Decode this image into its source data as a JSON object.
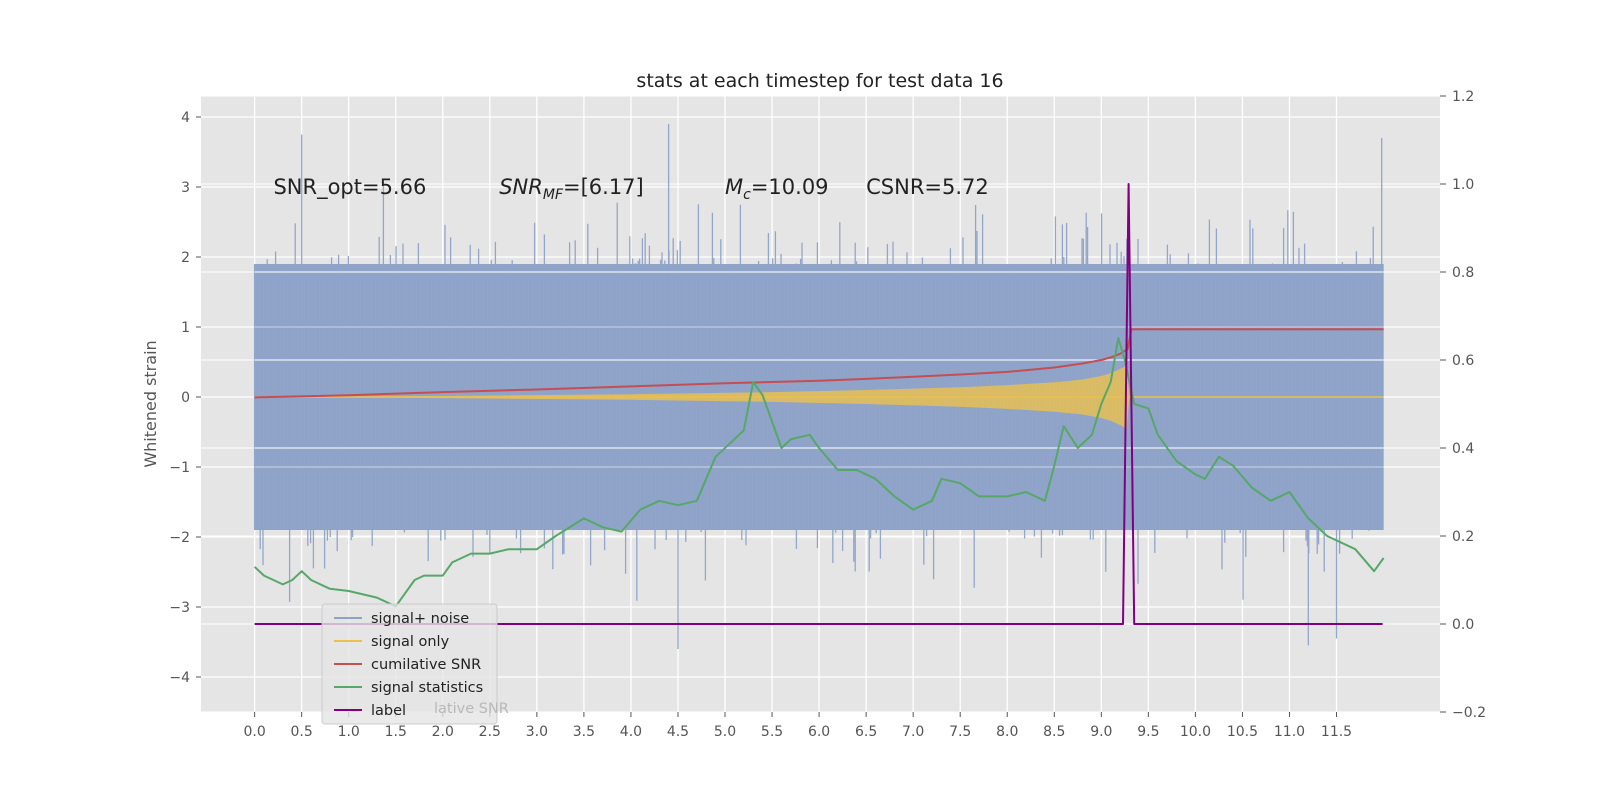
{
  "chart_data": {
    "type": "line",
    "title": "stats at each timestep for test data 16",
    "ylabel": "Whitened strain",
    "xlim": [
      -0.57,
      12.6
    ],
    "ylim": [
      -4.5,
      4.3
    ],
    "ylim_right": [
      -0.2,
      1.2
    ],
    "xticks": [
      "0.0",
      "0.5",
      "1.0",
      "1.5",
      "2.0",
      "2.5",
      "3.0",
      "3.5",
      "4.0",
      "4.5",
      "5.0",
      "5.5",
      "6.0",
      "6.5",
      "7.0",
      "7.5",
      "8.0",
      "8.5",
      "9.0",
      "9.5",
      "10.0",
      "10.5",
      "11.0",
      "11.5"
    ],
    "yticks": [
      "4",
      "3",
      "2",
      "1",
      "0",
      "−1",
      "−2",
      "−3",
      "−4"
    ],
    "yticks_right": [
      "1.2",
      "1.0",
      "0.8",
      "0.6",
      "0.4",
      "0.2",
      "0.0",
      "−0.2"
    ],
    "grid": true,
    "legend_placement": "lower-left",
    "annotations": [
      {
        "text": "SNR_opt=5.66",
        "x": 0.2,
        "y": 3.0
      },
      {
        "sub_main": "SNR",
        "sub_index": "MF",
        "text_after": "=[6.17]",
        "x": 2.6,
        "y": 3.0
      },
      {
        "sub_main": "M",
        "sub_index": "c",
        "text_after": "=10.09",
        "x": 5.0,
        "y": 3.0
      },
      {
        "text": "CSNR=5.72",
        "x": 6.5,
        "y": 3.0
      }
    ],
    "legend": [
      {
        "label": "signal+ noise",
        "color": "#8ea2c8"
      },
      {
        "label": "signal only",
        "color": "#ecc04c"
      },
      {
        "label": "cumilative SNR",
        "color": "#c44e52"
      },
      {
        "label": "signal statistics",
        "color": "#55a868"
      },
      {
        "label": "label",
        "color": "#800080"
      }
    ],
    "legend_ghost_text": "lative SNR",
    "series": [
      {
        "name": "signal+ noise",
        "axis": "left",
        "color": "#8ea2c8",
        "x_range": [
          0,
          12.0
        ],
        "band_upper": 1.9,
        "band_lower": -1.9,
        "notable_peaks": [
          [
            0.5,
            3.75
          ],
          [
            4.4,
            3.9
          ],
          [
            11.98,
            3.7
          ],
          [
            4.5,
            -3.6
          ],
          [
            11.2,
            -3.55
          ],
          [
            11.5,
            -3.45
          ]
        ]
      },
      {
        "name": "signal only",
        "axis": "left",
        "color": "#ecc04c",
        "envelope": [
          [
            0,
            0.0
          ],
          [
            2.0,
            0.015
          ],
          [
            4.0,
            0.04
          ],
          [
            5.5,
            0.07
          ],
          [
            6.5,
            0.1
          ],
          [
            7.5,
            0.14
          ],
          [
            8.0,
            0.17
          ],
          [
            8.5,
            0.21
          ],
          [
            8.8,
            0.25
          ],
          [
            9.0,
            0.3
          ],
          [
            9.1,
            0.34
          ],
          [
            9.2,
            0.4
          ],
          [
            9.27,
            0.45
          ],
          [
            9.3,
            0.0
          ],
          [
            12.0,
            0.0
          ]
        ]
      },
      {
        "name": "cumilative SNR",
        "axis": "right",
        "color": "#c44e52",
        "points": [
          [
            0,
            0.515
          ],
          [
            1,
            0.52
          ],
          [
            2,
            0.527
          ],
          [
            3,
            0.533
          ],
          [
            4,
            0.54
          ],
          [
            5,
            0.547
          ],
          [
            6,
            0.553
          ],
          [
            6.5,
            0.557
          ],
          [
            7,
            0.562
          ],
          [
            7.5,
            0.567
          ],
          [
            8,
            0.573
          ],
          [
            8.5,
            0.583
          ],
          [
            8.8,
            0.592
          ],
          [
            9.0,
            0.6
          ],
          [
            9.1,
            0.606
          ],
          [
            9.2,
            0.614
          ],
          [
            9.28,
            0.625
          ],
          [
            9.32,
            0.67
          ],
          [
            12.0,
            0.67
          ]
        ]
      },
      {
        "name": "signal statistics",
        "axis": "right",
        "color": "#55a868",
        "points": [
          [
            0,
            0.13
          ],
          [
            0.1,
            0.11
          ],
          [
            0.3,
            0.09
          ],
          [
            0.4,
            0.1
          ],
          [
            0.5,
            0.12
          ],
          [
            0.6,
            0.1
          ],
          [
            0.8,
            0.08
          ],
          [
            1.0,
            0.075
          ],
          [
            1.3,
            0.06
          ],
          [
            1.5,
            0.04
          ],
          [
            1.7,
            0.1
          ],
          [
            1.8,
            0.11
          ],
          [
            2.0,
            0.11
          ],
          [
            2.1,
            0.14
          ],
          [
            2.3,
            0.16
          ],
          [
            2.5,
            0.16
          ],
          [
            2.7,
            0.17
          ],
          [
            2.9,
            0.17
          ],
          [
            3.0,
            0.17
          ],
          [
            3.2,
            0.2
          ],
          [
            3.5,
            0.24
          ],
          [
            3.7,
            0.22
          ],
          [
            3.9,
            0.21
          ],
          [
            4.1,
            0.26
          ],
          [
            4.3,
            0.28
          ],
          [
            4.5,
            0.27
          ],
          [
            4.7,
            0.28
          ],
          [
            4.9,
            0.38
          ],
          [
            5.1,
            0.42
          ],
          [
            5.2,
            0.44
          ],
          [
            5.3,
            0.55
          ],
          [
            5.4,
            0.52
          ],
          [
            5.6,
            0.4
          ],
          [
            5.7,
            0.42
          ],
          [
            5.9,
            0.43
          ],
          [
            6.0,
            0.4
          ],
          [
            6.2,
            0.35
          ],
          [
            6.4,
            0.35
          ],
          [
            6.6,
            0.33
          ],
          [
            6.8,
            0.29
          ],
          [
            7.0,
            0.26
          ],
          [
            7.2,
            0.28
          ],
          [
            7.3,
            0.33
          ],
          [
            7.5,
            0.32
          ],
          [
            7.7,
            0.29
          ],
          [
            8.0,
            0.29
          ],
          [
            8.2,
            0.3
          ],
          [
            8.4,
            0.28
          ],
          [
            8.5,
            0.36
          ],
          [
            8.6,
            0.45
          ],
          [
            8.75,
            0.4
          ],
          [
            8.9,
            0.43
          ],
          [
            9.0,
            0.5
          ],
          [
            9.1,
            0.55
          ],
          [
            9.18,
            0.65
          ],
          [
            9.25,
            0.6
          ],
          [
            9.35,
            0.5
          ],
          [
            9.5,
            0.49
          ],
          [
            9.6,
            0.43
          ],
          [
            9.8,
            0.37
          ],
          [
            10.0,
            0.34
          ],
          [
            10.1,
            0.33
          ],
          [
            10.25,
            0.38
          ],
          [
            10.4,
            0.36
          ],
          [
            10.6,
            0.31
          ],
          [
            10.8,
            0.28
          ],
          [
            11.0,
            0.3
          ],
          [
            11.2,
            0.24
          ],
          [
            11.4,
            0.2
          ],
          [
            11.7,
            0.17
          ],
          [
            11.9,
            0.12
          ],
          [
            12.0,
            0.15
          ]
        ]
      },
      {
        "name": "label",
        "axis": "right",
        "color": "#800080",
        "points": [
          [
            0,
            0.0
          ],
          [
            9.23,
            0.0
          ],
          [
            9.29,
            1.0
          ],
          [
            9.35,
            0.0
          ],
          [
            11.99,
            0.0
          ]
        ]
      }
    ]
  }
}
